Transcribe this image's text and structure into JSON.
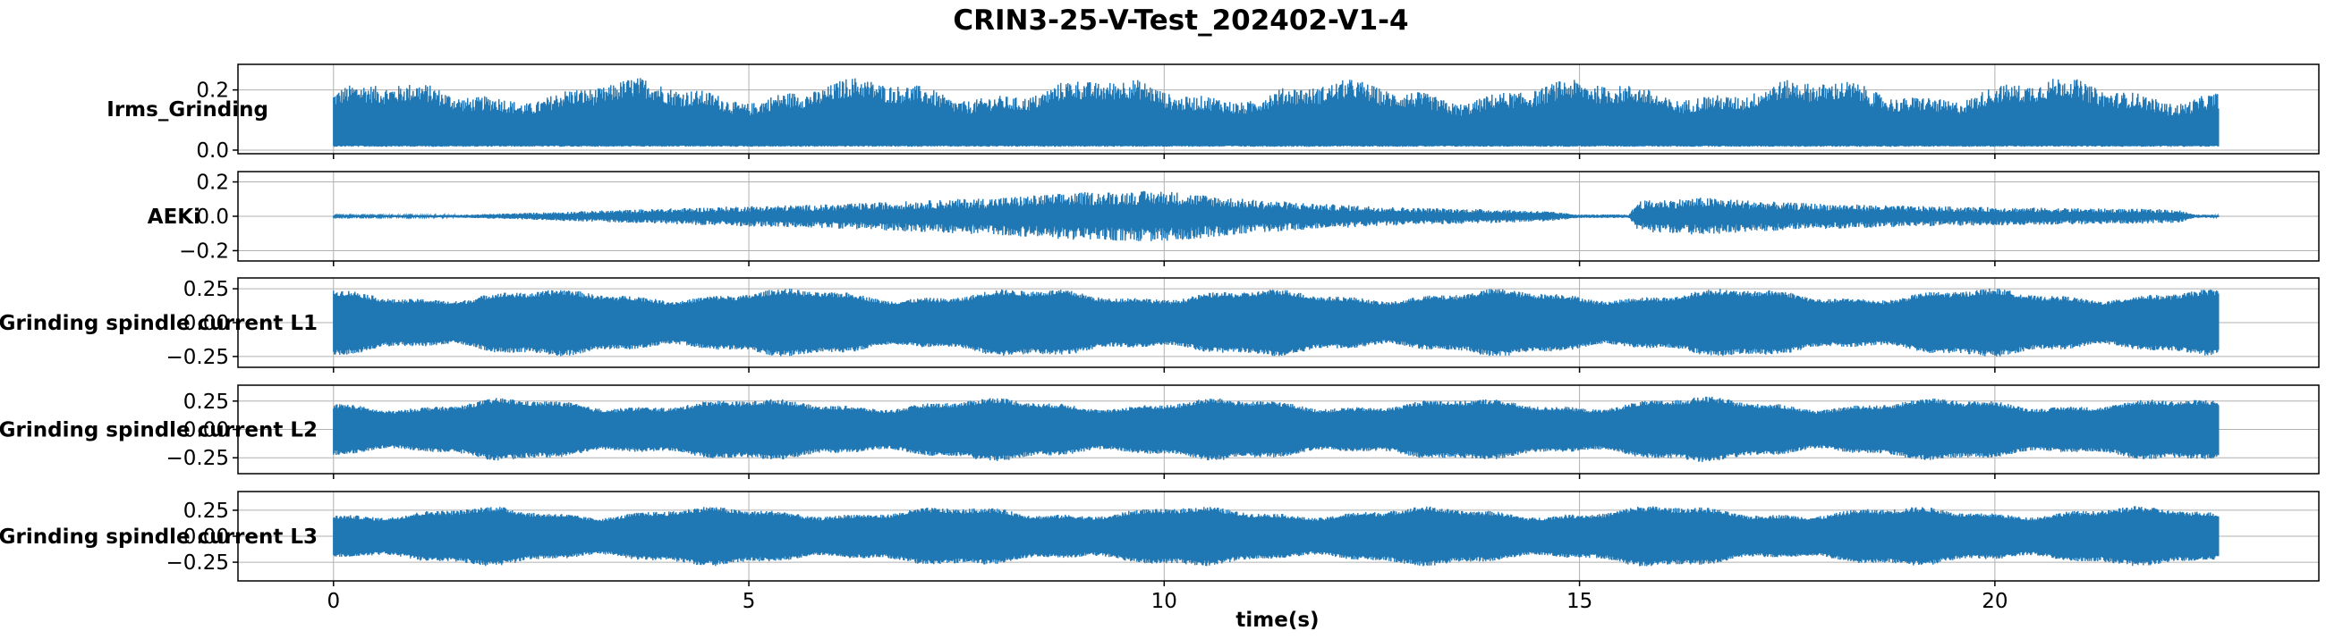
{
  "chart_data": {
    "type": "line",
    "title": "CRIN3-25-V-Test_202402-V1-4",
    "xlabel": "time(s)",
    "xlim": [
      -1.15,
      23.9
    ],
    "xticks": [
      0,
      5,
      10,
      15,
      20
    ],
    "x_range_of_data": [
      0,
      22.7
    ],
    "color": "#1f77b4",
    "grid": true,
    "shared_x": true,
    "panels": [
      {
        "name": "Irms_Grinding",
        "ylabel": "Irms_Grinding",
        "ylim": [
          -0.012,
          0.285
        ],
        "yticks": [
          0.0,
          0.2
        ],
        "ytick_labels": [
          "0.0",
          "0.2"
        ],
        "baseline": 0.015,
        "envelope": [
          [
            0.0,
            0.225
          ],
          [
            1.0,
            0.22
          ],
          [
            2.0,
            0.23
          ],
          [
            3.0,
            0.225
          ],
          [
            4.0,
            0.235
          ],
          [
            5.0,
            0.23
          ],
          [
            6.0,
            0.235
          ],
          [
            7.0,
            0.23
          ],
          [
            8.0,
            0.235
          ],
          [
            9.0,
            0.235
          ],
          [
            10.0,
            0.235
          ],
          [
            11.0,
            0.23
          ],
          [
            12.0,
            0.225
          ],
          [
            13.0,
            0.23
          ],
          [
            14.0,
            0.23
          ],
          [
            15.0,
            0.225
          ],
          [
            16.0,
            0.24
          ],
          [
            17.0,
            0.235
          ],
          [
            18.0,
            0.23
          ],
          [
            19.0,
            0.23
          ],
          [
            20.0,
            0.235
          ],
          [
            21.0,
            0.235
          ],
          [
            22.0,
            0.23
          ],
          [
            22.7,
            0.225
          ]
        ]
      },
      {
        "name": "AEKi",
        "ylabel": "AEKi",
        "ylim": [
          -0.26,
          0.26
        ],
        "yticks": [
          -0.2,
          0.0,
          0.2
        ],
        "ytick_labels": [
          "−0.2",
          "0.0",
          "0.2"
        ],
        "baseline": 0.0,
        "envelope": [
          [
            0.0,
            0.005
          ],
          [
            1.5,
            0.008
          ],
          [
            2.0,
            0.015
          ],
          [
            3.0,
            0.03
          ],
          [
            4.0,
            0.045
          ],
          [
            5.0,
            0.06
          ],
          [
            6.0,
            0.07
          ],
          [
            7.0,
            0.09
          ],
          [
            8.0,
            0.11
          ],
          [
            9.0,
            0.14
          ],
          [
            10.0,
            0.15
          ],
          [
            11.0,
            0.1
          ],
          [
            12.0,
            0.07
          ],
          [
            13.0,
            0.05
          ],
          [
            14.0,
            0.04
          ],
          [
            14.6,
            0.03
          ],
          [
            15.0,
            0.01
          ],
          [
            15.6,
            0.01
          ],
          [
            15.7,
            0.09
          ],
          [
            16.5,
            0.11
          ],
          [
            17.5,
            0.08
          ],
          [
            19.0,
            0.06
          ],
          [
            20.5,
            0.05
          ],
          [
            22.2,
            0.04
          ],
          [
            22.4,
            0.01
          ],
          [
            22.7,
            0.008
          ]
        ]
      },
      {
        "name": "Grinding spindle current L1",
        "ylabel": "Grinding spindle current L1",
        "ylim": [
          -0.33,
          0.33
        ],
        "yticks": [
          -0.25,
          0.0,
          0.25
        ],
        "ytick_labels": [
          "−0.25",
          "0.00",
          "0.25"
        ],
        "baseline": 0.0,
        "envelope": [
          [
            0.0,
            0.24
          ],
          [
            1.0,
            0.23
          ],
          [
            2.0,
            0.245
          ],
          [
            3.0,
            0.235
          ],
          [
            4.0,
            0.245
          ],
          [
            5.0,
            0.24
          ],
          [
            6.0,
            0.245
          ],
          [
            7.0,
            0.24
          ],
          [
            8.0,
            0.245
          ],
          [
            9.0,
            0.245
          ],
          [
            10.0,
            0.245
          ],
          [
            11.0,
            0.24
          ],
          [
            12.0,
            0.235
          ],
          [
            13.0,
            0.24
          ],
          [
            14.0,
            0.24
          ],
          [
            15.0,
            0.235
          ],
          [
            16.0,
            0.25
          ],
          [
            17.0,
            0.245
          ],
          [
            18.0,
            0.24
          ],
          [
            19.0,
            0.24
          ],
          [
            20.0,
            0.245
          ],
          [
            21.0,
            0.245
          ],
          [
            22.0,
            0.24
          ],
          [
            22.7,
            0.235
          ]
        ]
      },
      {
        "name": "Grinding spindle current L2",
        "ylabel": "Grinding spindle current L2",
        "ylim": [
          -0.39,
          0.39
        ],
        "yticks": [
          -0.25,
          0.0,
          0.25
        ],
        "ytick_labels": [
          "−0.25",
          "0.00",
          "0.25"
        ],
        "baseline": 0.0,
        "envelope": [
          [
            0.0,
            0.26
          ],
          [
            1.0,
            0.25
          ],
          [
            2.0,
            0.27
          ],
          [
            3.0,
            0.255
          ],
          [
            4.0,
            0.27
          ],
          [
            5.0,
            0.26
          ],
          [
            6.0,
            0.27
          ],
          [
            7.0,
            0.26
          ],
          [
            8.0,
            0.27
          ],
          [
            9.0,
            0.265
          ],
          [
            10.0,
            0.27
          ],
          [
            11.0,
            0.265
          ],
          [
            12.0,
            0.26
          ],
          [
            13.0,
            0.265
          ],
          [
            14.0,
            0.265
          ],
          [
            15.0,
            0.26
          ],
          [
            16.0,
            0.285
          ],
          [
            17.0,
            0.27
          ],
          [
            18.0,
            0.26
          ],
          [
            19.0,
            0.265
          ],
          [
            20.0,
            0.27
          ],
          [
            21.0,
            0.27
          ],
          [
            22.0,
            0.265
          ],
          [
            22.7,
            0.26
          ]
        ]
      },
      {
        "name": "Grinding spindle current L3",
        "ylabel": "Grinding spindle current L3",
        "ylim": [
          -0.43,
          0.43
        ],
        "yticks": [
          -0.25,
          0.0,
          0.25
        ],
        "ytick_labels": [
          "−0.25",
          "0.00",
          "0.25"
        ],
        "baseline": 0.0,
        "envelope": [
          [
            0.0,
            0.27
          ],
          [
            1.0,
            0.26
          ],
          [
            2.0,
            0.28
          ],
          [
            3.0,
            0.265
          ],
          [
            4.0,
            0.28
          ],
          [
            5.0,
            0.27
          ],
          [
            6.0,
            0.28
          ],
          [
            7.0,
            0.27
          ],
          [
            8.0,
            0.28
          ],
          [
            9.0,
            0.275
          ],
          [
            10.0,
            0.28
          ],
          [
            11.0,
            0.275
          ],
          [
            12.0,
            0.27
          ],
          [
            13.0,
            0.275
          ],
          [
            14.0,
            0.275
          ],
          [
            15.0,
            0.27
          ],
          [
            16.0,
            0.29
          ],
          [
            17.0,
            0.28
          ],
          [
            18.0,
            0.27
          ],
          [
            19.0,
            0.275
          ],
          [
            20.0,
            0.28
          ],
          [
            21.0,
            0.28
          ],
          [
            22.0,
            0.275
          ],
          [
            22.7,
            0.27
          ]
        ]
      }
    ]
  }
}
